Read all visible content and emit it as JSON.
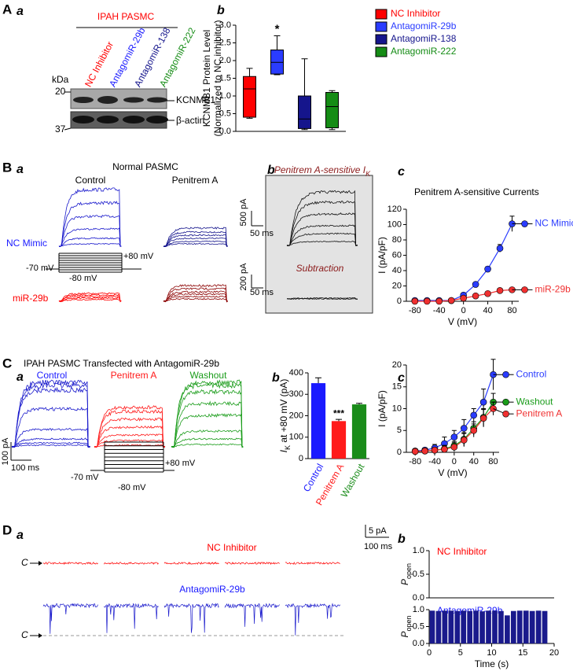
{
  "figure": {
    "A": {
      "label": "A",
      "sub_a": "a",
      "header": "IPAH PASMC",
      "lanes": [
        "NC Inhibitor",
        "AntagomiR-29b",
        "AntagomiR-138",
        "AntagomiR-222"
      ],
      "kda": "kDa",
      "markers": [
        20,
        37
      ],
      "bands": [
        "KCNMB1",
        "β-actin"
      ],
      "sub_b": "b"
    },
    "B": {
      "label": "B",
      "sub_a": "a",
      "condition": "Normal PASMC",
      "columns": [
        "Control",
        "Penitrem A"
      ],
      "rows": [
        "NC Mimic",
        "miR-29b"
      ],
      "protocol": [
        "+80 mV",
        "-70 mV",
        "-80 mV"
      ],
      "scales": [
        {
          "y": "500 pA",
          "x": "50 ms"
        },
        {
          "y": "200 pA",
          "x": "50 ms"
        }
      ],
      "sub_b": "b",
      "inset_title": {
        "text": "Penitrem A-sensitive ",
        "symbol": "I",
        "subscript": "K"
      },
      "subtraction": "Subtraction",
      "sub_c": "c"
    },
    "C": {
      "label": "C",
      "title": "IPAH PASMC Transfected with AntagomiR-29b",
      "sub_a": "a",
      "columns": [
        "Control",
        "Penitrem A",
        "Washout"
      ],
      "scale": {
        "y": "100 pA",
        "x": "100 ms"
      },
      "protocol": [
        "+80 mV",
        "-70 mV",
        "-80 mV"
      ],
      "sub_b": "b",
      "sub_c": "c"
    },
    "D": {
      "label": "D",
      "sub_a": "a",
      "traces": [
        "NC Inhibitor",
        "AntagomiR-29b"
      ],
      "scale": {
        "y": "5 pA",
        "x": "100 ms"
      },
      "closed": [
        "C",
        "C"
      ],
      "sub_b": "b"
    }
  },
  "chart_data": [
    {
      "type": "box",
      "ylabel": [
        "KCNMB1 Protein Level",
        "(Normalized to NC inhibitor)"
      ],
      "ylim": [
        0,
        3
      ],
      "yticks": [
        {
          "value": 0,
          "label": "0.0"
        },
        {
          "value": 0.5,
          "label": "0.5"
        },
        {
          "value": 1,
          "label": "1.0"
        },
        {
          "value": 1.5,
          "label": "1.5"
        },
        {
          "value": 2,
          "label": "2.0"
        },
        {
          "value": 2.5,
          "label": "2.5"
        },
        {
          "value": 3,
          "label": "3.0"
        }
      ],
      "legend": "outside-right",
      "series": [
        {
          "name": "NC Inhibitor",
          "color": "#ff0000",
          "min": 0.37,
          "q1": 0.4,
          "median": 1.2,
          "q3": 1.55,
          "max": 1.78
        },
        {
          "name": "AntagomiR-29b",
          "color": "#2a3cff",
          "min": 1.6,
          "q1": 1.62,
          "median": 1.95,
          "q3": 2.3,
          "max": 2.7
        },
        {
          "name": "AntagomiR-138",
          "color": "#15158c",
          "min": 0.05,
          "q1": 0.08,
          "median": 0.35,
          "q3": 1.0,
          "max": 2.05
        },
        {
          "name": "AntagomiR-222",
          "color": "#158c15",
          "min": 0.05,
          "q1": 0.1,
          "median": 0.7,
          "q3": 1.1,
          "max": 1.15
        }
      ],
      "annotations": [
        {
          "category": "AntagomiR-29b",
          "text": "*"
        }
      ]
    },
    {
      "type": "line",
      "title": "Penitrem A-sensitive Currents",
      "xlabel": "V (mV)",
      "ylabel": "I (pA/pF)",
      "x": [
        -80,
        -60,
        -40,
        -20,
        0,
        20,
        40,
        60,
        80
      ],
      "xlim": [
        -94,
        91
      ],
      "xticks": [
        -80,
        -40,
        0,
        40,
        80
      ],
      "ylim": [
        0,
        120
      ],
      "yticks": [
        0,
        20,
        40,
        60,
        80,
        100,
        120
      ],
      "series": [
        {
          "name": "NC Mimic",
          "color": "#2a3cff",
          "values": [
            1,
            1,
            1,
            1,
            8,
            22,
            42,
            69,
            101
          ],
          "errors": [
            0.5,
            0.5,
            0.5,
            0.5,
            1.5,
            2,
            3,
            5,
            10
          ]
        },
        {
          "name": "miR-29b",
          "color": "#f03030",
          "values": [
            0,
            0,
            0,
            1,
            4,
            7,
            10,
            14,
            15
          ],
          "errors": [
            0.5,
            0.5,
            0.5,
            0.5,
            0.5,
            1,
            1,
            1,
            1
          ]
        }
      ]
    },
    {
      "type": "bar",
      "ylabel": {
        "symbol": "I",
        "subscript": "K",
        "text": " at +80 mV (pA)"
      },
      "categories": [
        "Control",
        "Penitrem A",
        "Washout"
      ],
      "values": [
        352,
        175,
        253
      ],
      "errors": [
        25,
        8,
        5
      ],
      "colors": [
        "#1a1aff",
        "#ff1a1a",
        "#1a8c1a"
      ],
      "ylim": [
        0,
        400
      ],
      "yticks": [
        0,
        100,
        200,
        300,
        400
      ],
      "annotations": [
        {
          "category": "Penitrem A",
          "text": "***"
        }
      ]
    },
    {
      "type": "line",
      "xlabel": "V (mV)",
      "ylabel": "I (pA/pF)",
      "x": [
        -80,
        -60,
        -40,
        -20,
        0,
        20,
        40,
        60,
        80
      ],
      "xlim": [
        -98,
        92
      ],
      "xticks": [
        -80,
        -40,
        0,
        40,
        80
      ],
      "ylim": [
        0,
        20
      ],
      "yticks": [
        0,
        5,
        10,
        15,
        20
      ],
      "series": [
        {
          "name": "Control",
          "color": "#2a3cff",
          "values": [
            0.3,
            0.5,
            1,
            2,
            3.5,
            5.5,
            8.5,
            11.5,
            17.8
          ],
          "errors": [
            0.5,
            0.5,
            0.8,
            1.5,
            1.5,
            2,
            1.5,
            3,
            3.5
          ]
        },
        {
          "name": "Washout",
          "color": "#1a9c1a",
          "values": [
            0.2,
            0.3,
            0.5,
            0.8,
            1.5,
            3,
            5.5,
            8,
            11.5
          ],
          "errors": [
            0.3,
            0.3,
            0.5,
            0.8,
            1,
            1.5,
            1.5,
            2,
            2
          ]
        },
        {
          "name": "Penitrem A",
          "color": "#f03030",
          "values": [
            0.2,
            0.3,
            0.5,
            0.7,
            1.2,
            2.8,
            5,
            7.8,
            10
          ],
          "errors": [
            0.3,
            0.3,
            0.5,
            0.8,
            1,
            1.5,
            1.5,
            2,
            1.5
          ]
        }
      ]
    },
    {
      "type": "bar",
      "title": "NC Inhibitor",
      "title_color": "#ff0000",
      "ylabel": {
        "symbol": "P",
        "subscript": "open"
      },
      "x": [
        0.5,
        1.5,
        2.5,
        3.5,
        4.5,
        5.5,
        6.5,
        7.5,
        8.5,
        9.5,
        10.5,
        11.5,
        12.5,
        13.5,
        14.5,
        15.5,
        16.5,
        17.5,
        18.5
      ],
      "values": [
        0,
        0,
        0,
        0,
        0,
        0,
        0,
        0,
        0,
        0,
        0,
        0,
        0,
        0,
        0,
        0,
        0,
        0,
        0
      ],
      "color": "#1a1a8c",
      "xlim": [
        0,
        20
      ],
      "ylim": [
        0,
        1
      ],
      "yticks": [
        {
          "value": 0,
          "label": "0.0"
        },
        {
          "value": 0.5,
          "label": "0.5"
        },
        {
          "value": 1,
          "label": "1.0"
        }
      ]
    },
    {
      "type": "bar",
      "title": "AntagomiR-29b",
      "title_color": "#1a1aff",
      "ylabel": {
        "symbol": "P",
        "subscript": "open"
      },
      "xlabel": "Time (s)",
      "x": [
        0.5,
        1.5,
        2.5,
        3.5,
        4.5,
        5.5,
        6.5,
        7.5,
        8.5,
        9.5,
        10.5,
        11.5,
        12.5,
        13.5,
        14.5,
        15.5,
        16.5,
        17.5,
        18.5
      ],
      "values": [
        0.97,
        0.96,
        0.97,
        0.97,
        0.96,
        0.97,
        0.96,
        0.97,
        0.95,
        0.97,
        0.97,
        0.96,
        0.83,
        0.96,
        0.97,
        0.97,
        0.96,
        0.97,
        0.96
      ],
      "color": "#1a1a8c",
      "xlim": [
        0,
        20
      ],
      "xticks": [
        0,
        5,
        10,
        15,
        20
      ],
      "ylim": [
        0,
        1
      ],
      "yticks": [
        {
          "value": 0,
          "label": "0.0"
        },
        {
          "value": 0.5,
          "label": "0.5"
        },
        {
          "value": 1,
          "label": "1.0"
        }
      ]
    }
  ]
}
